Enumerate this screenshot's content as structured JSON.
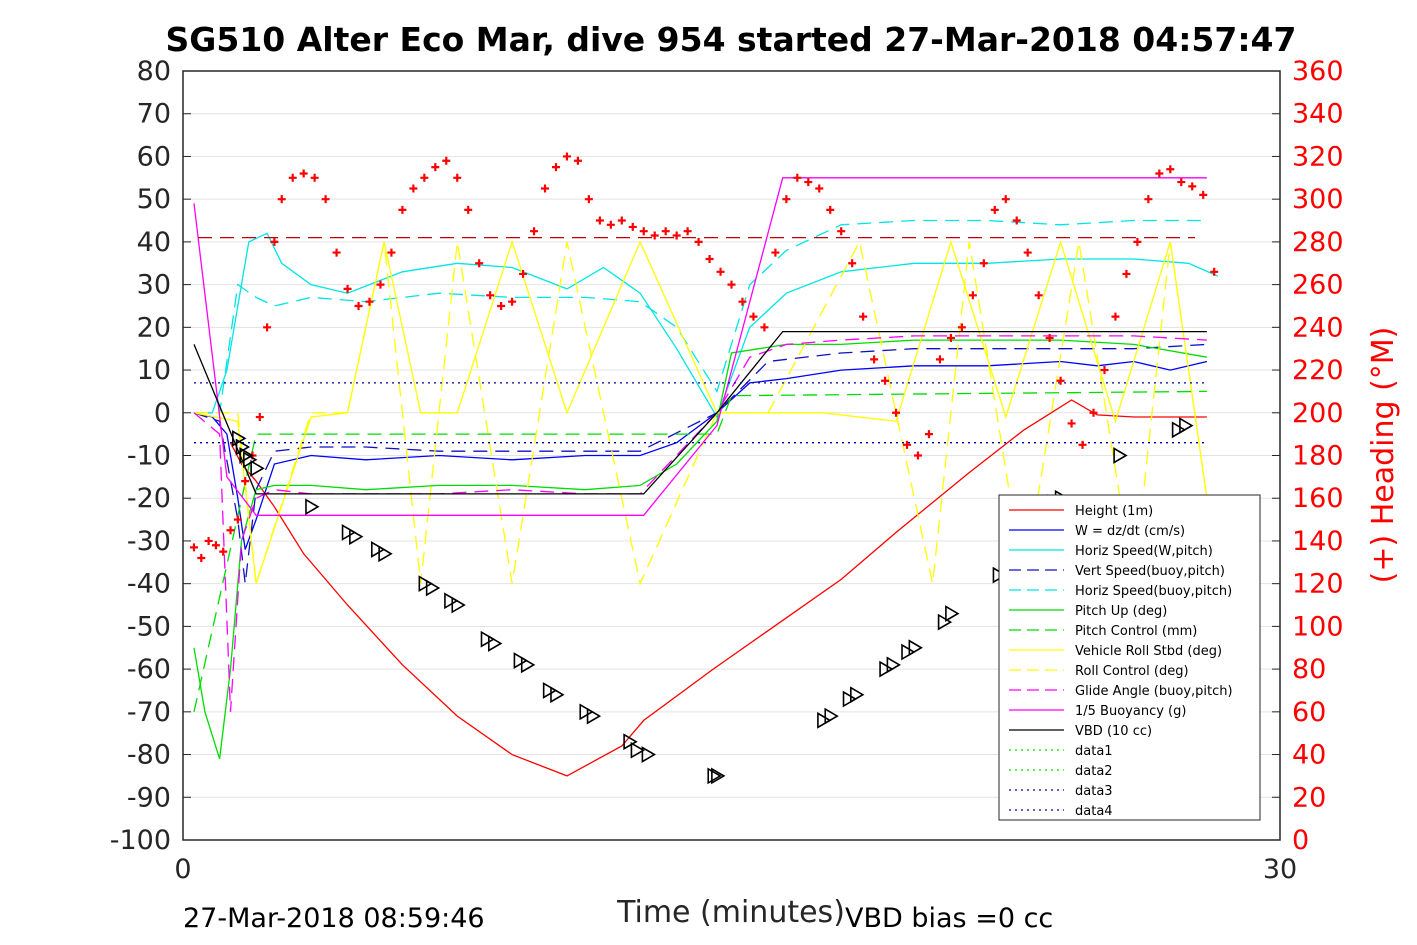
{
  "chart_data": {
    "type": "line",
    "title": "SG510 Alter Eco Mar, dive 954 started 27-Mar-2018 04:57:47",
    "xlabel": "Time (minutes)",
    "ylabel": "",
    "ylabel_right": "(+) Heading (°M)",
    "xlim": [
      0,
      30
    ],
    "ylim": [
      -100,
      80
    ],
    "ylim_right": [
      0,
      360
    ],
    "xticks": [
      "0",
      "30"
    ],
    "yticks": [
      "80",
      "70",
      "60",
      "50",
      "40",
      "30",
      "20",
      "10",
      "0",
      "-10",
      "-20",
      "-30",
      "-40",
      "-50",
      "-60",
      "-70",
      "-80",
      "-90",
      "-100"
    ],
    "yticks_right": [
      "360",
      "340",
      "320",
      "300",
      "280",
      "260",
      "240",
      "220",
      "200",
      "180",
      "160",
      "140",
      "120",
      "100",
      "80",
      "60",
      "40",
      "20",
      "0"
    ],
    "footer_left": "27-Mar-2018 08:59:46",
    "footer_right": "VBD bias =0 cc",
    "legend_position": "lower-right",
    "grid": true,
    "colors": {
      "red": "#ff0000",
      "blue": "#0000ff",
      "cyan": "#00e5e5",
      "green": "#00dd00",
      "yellow": "#ffff00",
      "magenta": "#ff00ff",
      "black": "#000000",
      "navy": "#0000a0",
      "darkred": "#c00000"
    },
    "series": [
      {
        "name": "Height (1m)",
        "color": "#ff0000",
        "style": "solid",
        "x": [
          1.3,
          1.6,
          2.0,
          2.5,
          3.3,
          4.5,
          6.0,
          7.5,
          9.0,
          10.5,
          12.0,
          12.6,
          14.5,
          16.5,
          18.0,
          19.5,
          21.5,
          23.0,
          24.3,
          25.0,
          26.0,
          27.0,
          28.0
        ],
        "y": [
          -7,
          -12,
          -16,
          -22,
          -33,
          -45,
          -59,
          -71,
          -80,
          -85,
          -78,
          -72,
          -60,
          -48,
          -39,
          -28,
          -14,
          -4,
          3,
          -0.5,
          -1,
          -1,
          -1
        ]
      },
      {
        "name": "W = dz/dt (cm/s)",
        "color": "#0000ff",
        "style": "solid",
        "x": [
          0.3,
          0.8,
          1.2,
          1.5,
          1.7,
          2.0,
          2.5,
          3.5,
          5.0,
          7.0,
          9.0,
          11.0,
          12.5,
          13.5,
          14.6,
          15.5,
          16.5,
          18.0,
          20.0,
          22.0,
          24.0,
          25.0,
          26.0,
          27.0,
          28.0
        ],
        "y": [
          0,
          -1,
          -5,
          -20,
          -32,
          -25,
          -12,
          -10,
          -11,
          -10,
          -11,
          -10,
          -10,
          -7,
          0,
          7,
          8,
          10,
          11,
          11,
          12,
          11,
          12,
          10,
          12
        ]
      },
      {
        "name": "Horiz Speed(W,pitch)",
        "color": "#00e5e5",
        "style": "solid",
        "x": [
          0.3,
          0.8,
          1.2,
          1.5,
          1.8,
          2.3,
          2.7,
          3.5,
          4.5,
          6.0,
          7.5,
          9.0,
          10.5,
          11.5,
          12.5,
          13.5,
          14.6,
          15.5,
          16.5,
          18.0,
          20.0,
          22.0,
          24.0,
          26.0,
          27.5,
          28.3
        ],
        "y": [
          0,
          0,
          10,
          25,
          40,
          42,
          35,
          30,
          28,
          33,
          35,
          34,
          29,
          34,
          28,
          15,
          -1,
          20,
          28,
          33,
          35,
          35,
          36,
          36,
          35,
          32
        ]
      },
      {
        "name": "Vert Speed(buoy,pitch)",
        "color": "#1010c0",
        "style": "dashed",
        "x": [
          0.3,
          1.0,
          1.5,
          1.7,
          2.0,
          2.5,
          3.5,
          5.0,
          7.0,
          9.0,
          11.0,
          12.5,
          14.6,
          16.0,
          18.0,
          20.0,
          22.0,
          24.0,
          26.0,
          28.0
        ],
        "y": [
          0,
          -2,
          -25,
          -40,
          -18,
          -9,
          -8,
          -8,
          -9,
          -9,
          -9,
          -9,
          0,
          12,
          14,
          15,
          15,
          15,
          15,
          16
        ]
      },
      {
        "name": "Horiz Speed(buoy,pitch)",
        "color": "#00e5e5",
        "style": "dashed",
        "x": [
          0.3,
          1.0,
          1.5,
          2.0,
          2.5,
          3.5,
          5.0,
          7.0,
          9.0,
          11.0,
          12.5,
          13.5,
          14.6,
          15.5,
          16.5,
          18.0,
          20.0,
          22.0,
          24.0,
          26.0,
          28.0
        ],
        "y": [
          0,
          0,
          30,
          27,
          25,
          27,
          26,
          28,
          27,
          27,
          26,
          20,
          5,
          30,
          38,
          44,
          45,
          45,
          44,
          45,
          45
        ]
      },
      {
        "name": "Pitch Up (deg)",
        "color": "#00dd00",
        "style": "solid",
        "x": [
          0.3,
          0.6,
          1.0,
          1.3,
          1.6,
          2.0,
          2.5,
          3.5,
          5.0,
          7.0,
          9.0,
          11.0,
          12.5,
          13.5,
          14.6,
          15.0,
          16.5,
          18.0,
          20.0,
          22.0,
          24.0,
          26.0,
          28.0
        ],
        "y": [
          -55,
          -70,
          -81,
          -60,
          -30,
          -18,
          -17,
          -17,
          -18,
          -17,
          -17,
          -18,
          -17,
          -12,
          -2,
          14,
          16,
          16,
          17,
          17,
          17,
          16,
          13
        ]
      },
      {
        "name": "Pitch Control (mm)",
        "color": "#00dd00",
        "style": "dashed",
        "x": [
          0.3,
          2.0,
          5.0,
          9.0,
          12.5,
          14.6,
          15.0,
          28.0
        ],
        "y": [
          -70,
          -5,
          -5,
          -5,
          -5,
          -5,
          4,
          5
        ]
      },
      {
        "name": "Vehicle Roll Stbd (deg)",
        "color": "#ffff00",
        "style": "solid",
        "x": [
          0.3,
          1.5,
          2.0,
          3.5,
          4.5,
          5.5,
          6.5,
          7.5,
          9.0,
          10.5,
          12.5,
          14.6,
          15.5,
          17.5,
          19.5,
          21.0,
          22.5,
          24.0,
          25.5,
          27.0,
          28.0
        ],
        "y": [
          0,
          -2,
          -40,
          -1,
          0,
          40,
          0,
          0,
          40,
          0,
          40,
          0,
          0,
          0,
          -2,
          40,
          -1,
          40,
          -2,
          40,
          -20
        ]
      },
      {
        "name": "Roll Control (deg)",
        "color": "#ffff00",
        "style": "dashed",
        "x": [
          0.3,
          1.5,
          2.0,
          3.5,
          4.5,
          5.5,
          6.5,
          7.5,
          9.0,
          10.5,
          12.5,
          14.6,
          16.0,
          18.5,
          20.5,
          21.5,
          23.0,
          24.5,
          26.0,
          27.0,
          28.0
        ],
        "y": [
          0,
          0,
          -40,
          0,
          0,
          40,
          -40,
          40,
          -40,
          40,
          -40,
          0,
          0,
          40,
          -40,
          40,
          -40,
          40,
          -40,
          40,
          -20
        ]
      },
      {
        "name": "Glide Angle (buoy,pitch)",
        "color": "#ff00ff",
        "style": "dashed",
        "x": [
          0.3,
          1.0,
          1.3,
          1.6,
          2.0,
          2.5,
          3.5,
          5.0,
          7.0,
          9.0,
          11.0,
          12.5,
          14.6,
          15.5,
          16.5,
          18.0,
          20.0,
          22.0,
          24.0,
          26.0,
          28.0
        ],
        "y": [
          0,
          -5,
          -70,
          -30,
          -20,
          -18,
          -19,
          -19,
          -19,
          -18,
          -19,
          -19,
          0,
          13,
          16,
          17,
          18,
          18,
          18,
          18,
          17
        ]
      },
      {
        "name": "1/5 Buoyancy (g)",
        "color": "#ff00ff",
        "style": "solid",
        "x": [
          0.3,
          1.2,
          2.0,
          12.6,
          14.6,
          16.4,
          28.0
        ],
        "y": [
          49,
          -15,
          -24,
          -24,
          -3,
          55,
          55
        ]
      },
      {
        "name": "VBD (10 cc)",
        "color": "#000000",
        "style": "solid",
        "x": [
          0.3,
          2.0,
          12.6,
          14.6,
          16.4,
          28.0
        ],
        "y": [
          16,
          -19,
          -19,
          0,
          19,
          19
        ]
      },
      {
        "name": "data1",
        "color": "#00dd00",
        "style": "dotted",
        "x": [],
        "y": []
      },
      {
        "name": "data2",
        "color": "#00dd00",
        "style": "dotted",
        "x": [],
        "y": []
      },
      {
        "name": "data3",
        "color": "#0000a0",
        "style": "dotted",
        "x": [
          0.3,
          28.0
        ],
        "y": [
          7,
          7
        ]
      },
      {
        "name": "data4",
        "color": "#0000a0",
        "style": "dotted",
        "x": [
          0.3,
          28.0
        ],
        "y": [
          -7,
          -7
        ]
      }
    ],
    "reference_lines": [
      {
        "axis": "right",
        "value": 282,
        "color": "#c00000",
        "style": "dashed"
      }
    ],
    "heading_points_right_axis": {
      "x": [
        0.3,
        0.5,
        0.7,
        0.9,
        1.1,
        1.3,
        1.5,
        1.7,
        1.9,
        2.1,
        2.3,
        2.5,
        2.7,
        3.0,
        3.3,
        3.6,
        3.9,
        4.2,
        4.5,
        4.8,
        5.1,
        5.4,
        5.7,
        6.0,
        6.3,
        6.6,
        6.9,
        7.2,
        7.5,
        7.8,
        8.1,
        8.4,
        8.7,
        9.0,
        9.3,
        9.6,
        9.9,
        10.2,
        10.5,
        10.8,
        11.1,
        11.4,
        11.7,
        12.0,
        12.3,
        12.6,
        12.9,
        13.2,
        13.5,
        13.8,
        14.1,
        14.4,
        14.7,
        15.0,
        15.3,
        15.6,
        15.9,
        16.2,
        16.5,
        16.8,
        17.1,
        17.4,
        17.7,
        18.0,
        18.3,
        18.6,
        18.9,
        19.2,
        19.5,
        19.8,
        20.1,
        20.4,
        20.7,
        21.0,
        21.3,
        21.6,
        21.9,
        22.2,
        22.5,
        22.8,
        23.1,
        23.4,
        23.7,
        24.0,
        24.3,
        24.6,
        24.9,
        25.2,
        25.5,
        25.8,
        26.1,
        26.4,
        26.7,
        27.0,
        27.3,
        27.6,
        27.9,
        28.2
      ],
      "y": [
        137,
        132,
        140,
        138,
        135,
        145,
        150,
        168,
        180,
        198,
        240,
        280,
        300,
        310,
        312,
        310,
        300,
        275,
        258,
        250,
        252,
        260,
        275,
        295,
        305,
        310,
        315,
        318,
        310,
        295,
        270,
        255,
        250,
        252,
        265,
        285,
        305,
        315,
        320,
        318,
        300,
        290,
        288,
        290,
        287,
        285,
        283,
        285,
        283,
        285,
        280,
        272,
        266,
        260,
        252,
        245,
        240,
        275,
        300,
        310,
        308,
        305,
        295,
        285,
        270,
        245,
        225,
        215,
        200,
        185,
        180,
        190,
        225,
        235,
        240,
        255,
        270,
        295,
        300,
        290,
        275,
        255,
        235,
        215,
        195,
        185,
        200,
        220,
        245,
        265,
        280,
        300,
        312,
        314,
        308,
        306,
        302,
        266
      ]
    },
    "triangle_markers_x": [
      1.5,
      1.6,
      1.7,
      1.8,
      2.0,
      3.5,
      4.5,
      4.7,
      5.3,
      5.5,
      6.6,
      6.8,
      7.3,
      7.5,
      8.3,
      8.5,
      9.2,
      9.4,
      10.0,
      10.2,
      11.0,
      11.2,
      12.2,
      12.4,
      12.7,
      14.5,
      14.6,
      17.5,
      17.7,
      18.2,
      18.4,
      19.2,
      19.4,
      19.8,
      20.0,
      20.8,
      21.0,
      22.3,
      23.8,
      24.0,
      25.6,
      27.2,
      27.4
    ],
    "triangle_markers_y": [
      -6,
      -8,
      -10,
      -11,
      -13,
      -22,
      -28,
      -29,
      -32,
      -33,
      -40,
      -41,
      -44,
      -45,
      -53,
      -54,
      -58,
      -59,
      -65,
      -66,
      -70,
      -71,
      -77,
      -79,
      -80,
      -85,
      -85,
      -72,
      -71,
      -67,
      -66,
      -60,
      -59,
      -56,
      -55,
      -49,
      -47,
      -38,
      -21,
      -20,
      -10,
      -4,
      -3
    ]
  }
}
